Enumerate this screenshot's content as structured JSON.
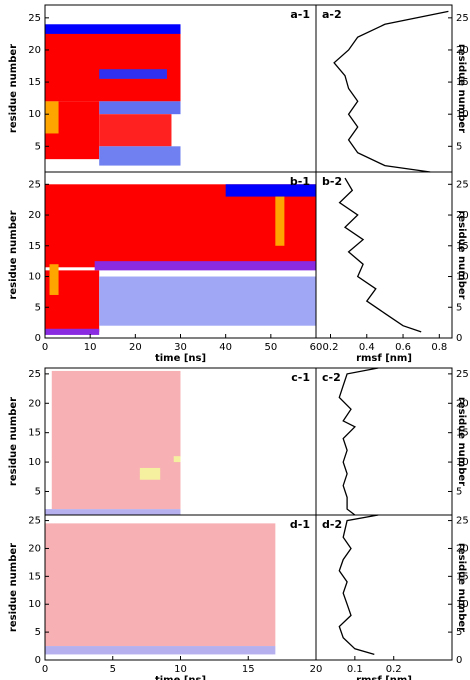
{
  "chart_data": [
    {
      "type": "heatmap",
      "label": "a-1",
      "ylabel": "residue number",
      "xlim": [
        0,
        60
      ],
      "ylim": [
        1,
        27
      ],
      "yticks": [
        5,
        10,
        15,
        20,
        25
      ],
      "blocks": [
        {
          "t": [
            0,
            30
          ],
          "r": [
            12,
            23
          ],
          "color": "#ff0000"
        },
        {
          "t": [
            0,
            30
          ],
          "r": [
            22.5,
            24
          ],
          "color": "#0000ff"
        },
        {
          "t": [
            12,
            27
          ],
          "r": [
            15.5,
            17
          ],
          "color": "#3030f0"
        },
        {
          "t": [
            12,
            30
          ],
          "r": [
            10,
            12
          ],
          "color": "#6070f0"
        },
        {
          "t": [
            0,
            12
          ],
          "r": [
            3,
            12
          ],
          "color": "#ff0000"
        },
        {
          "t": [
            0,
            3
          ],
          "r": [
            7,
            12
          ],
          "color": "#ffa500"
        },
        {
          "t": [
            12,
            28
          ],
          "r": [
            5,
            10
          ],
          "color": "#ff2020"
        },
        {
          "t": [
            12,
            30
          ],
          "r": [
            2,
            5
          ],
          "color": "#7080f0"
        }
      ]
    },
    {
      "type": "line",
      "label": "a-2",
      "xlim": [
        0.12,
        0.87
      ],
      "ylim": [
        1,
        27
      ],
      "yticks": [
        5,
        10,
        15,
        20,
        25
      ],
      "ylabel": "residue number",
      "color": "#000000",
      "residues": [
        1,
        2,
        4,
        6,
        8,
        10,
        12,
        14,
        16,
        18,
        20,
        22,
        24,
        26
      ],
      "values": [
        0.75,
        0.5,
        0.35,
        0.3,
        0.35,
        0.3,
        0.35,
        0.3,
        0.28,
        0.22,
        0.3,
        0.35,
        0.5,
        0.85
      ]
    },
    {
      "type": "heatmap",
      "label": "b-1",
      "ylabel": "residue number",
      "xlabel": "time [ns]",
      "xlim": [
        0,
        60
      ],
      "ylim": [
        0,
        27
      ],
      "xticks": [
        0,
        10,
        20,
        30,
        40,
        50,
        60
      ],
      "yticks": [
        0,
        5,
        10,
        15,
        20,
        25
      ],
      "blocks": [
        {
          "t": [
            0,
            60
          ],
          "r": [
            11.5,
            25
          ],
          "color": "#ff0000"
        },
        {
          "t": [
            40,
            60
          ],
          "r": [
            23,
            25
          ],
          "color": "#0000ff"
        },
        {
          "t": [
            51,
            53
          ],
          "r": [
            15,
            23
          ],
          "color": "#ffa500"
        },
        {
          "t": [
            11,
            60
          ],
          "r": [
            11,
            12.5
          ],
          "color": "#8a2be2"
        },
        {
          "t": [
            0,
            12
          ],
          "r": [
            1,
            11
          ],
          "color": "#ff0000"
        },
        {
          "t": [
            1,
            3
          ],
          "r": [
            7,
            12
          ],
          "color": "#ffa500"
        },
        {
          "t": [
            12,
            60
          ],
          "r": [
            2,
            10
          ],
          "color": "#a0a8f5"
        },
        {
          "t": [
            0,
            12
          ],
          "r": [
            0.5,
            1.5
          ],
          "color": "#8a2be2"
        }
      ]
    },
    {
      "type": "line",
      "label": "b-2",
      "xlabel": "rmsf [nm]",
      "xlim": [
        0.12,
        0.87
      ],
      "ylim": [
        0,
        27
      ],
      "xticks": [
        0.2,
        0.4,
        0.6,
        0.8
      ],
      "yticks": [
        0,
        5,
        10,
        15,
        20,
        25
      ],
      "ylabel": "residue number",
      "color": "#000000",
      "residues": [
        1,
        2,
        4,
        6,
        8,
        10,
        12,
        14,
        16,
        18,
        20,
        22,
        24,
        26
      ],
      "values": [
        0.7,
        0.6,
        0.5,
        0.4,
        0.45,
        0.35,
        0.38,
        0.3,
        0.38,
        0.28,
        0.35,
        0.25,
        0.32,
        0.28
      ]
    },
    {
      "type": "heatmap",
      "label": "c-1",
      "ylabel": "residue number",
      "xlim": [
        0,
        20
      ],
      "ylim": [
        1,
        26
      ],
      "yticks": [
        5,
        10,
        15,
        20,
        25
      ],
      "blocks": [
        {
          "t": [
            0.5,
            10
          ],
          "r": [
            2,
            25.5
          ],
          "color": "#f7b0b4"
        },
        {
          "t": [
            0,
            10
          ],
          "r": [
            1,
            2
          ],
          "color": "#b6b0ee"
        },
        {
          "t": [
            7,
            8.5
          ],
          "r": [
            7,
            9
          ],
          "color": "#f5f0a0"
        },
        {
          "t": [
            9.5,
            10
          ],
          "r": [
            10,
            11
          ],
          "color": "#f5f0a0"
        }
      ]
    },
    {
      "type": "line",
      "label": "c-2",
      "xlim": [
        0,
        0.35
      ],
      "ylim": [
        1,
        26
      ],
      "yticks": [
        5,
        10,
        15,
        20,
        25
      ],
      "ylabel": "residue number",
      "color": "#000000",
      "residues": [
        1,
        2,
        4,
        6,
        8,
        10,
        12,
        14,
        16,
        17,
        19,
        21,
        23,
        25,
        26
      ],
      "values": [
        0.1,
        0.08,
        0.08,
        0.07,
        0.08,
        0.07,
        0.08,
        0.07,
        0.1,
        0.07,
        0.09,
        0.06,
        0.07,
        0.08,
        0.16
      ]
    },
    {
      "type": "heatmap",
      "label": "d-1",
      "ylabel": "residue number",
      "xlabel": "time [ns]",
      "xlim": [
        0,
        20
      ],
      "ylim": [
        0,
        26
      ],
      "xticks": [
        0,
        5,
        10,
        15,
        20
      ],
      "yticks": [
        0,
        5,
        10,
        15,
        20,
        25
      ],
      "blocks": [
        {
          "t": [
            0,
            17
          ],
          "r": [
            2.5,
            24.5
          ],
          "color": "#f7b0b4"
        },
        {
          "t": [
            0,
            17
          ],
          "r": [
            1,
            2.5
          ],
          "color": "#b6b0ee"
        }
      ]
    },
    {
      "type": "line",
      "label": "d-2",
      "xlabel": "rmsf [nm]",
      "xlim": [
        0,
        0.35
      ],
      "ylim": [
        0,
        26
      ],
      "xticks": [
        0.1,
        0.2
      ],
      "yticks": [
        0,
        5,
        10,
        15,
        20,
        25
      ],
      "ylabel": "residue number",
      "color": "#000000",
      "residues": [
        1,
        2,
        4,
        6,
        8,
        10,
        12,
        14,
        16,
        18,
        20,
        22,
        25,
        26
      ],
      "values": [
        0.15,
        0.1,
        0.07,
        0.06,
        0.09,
        0.08,
        0.07,
        0.08,
        0.06,
        0.07,
        0.09,
        0.07,
        0.08,
        0.16
      ]
    }
  ]
}
